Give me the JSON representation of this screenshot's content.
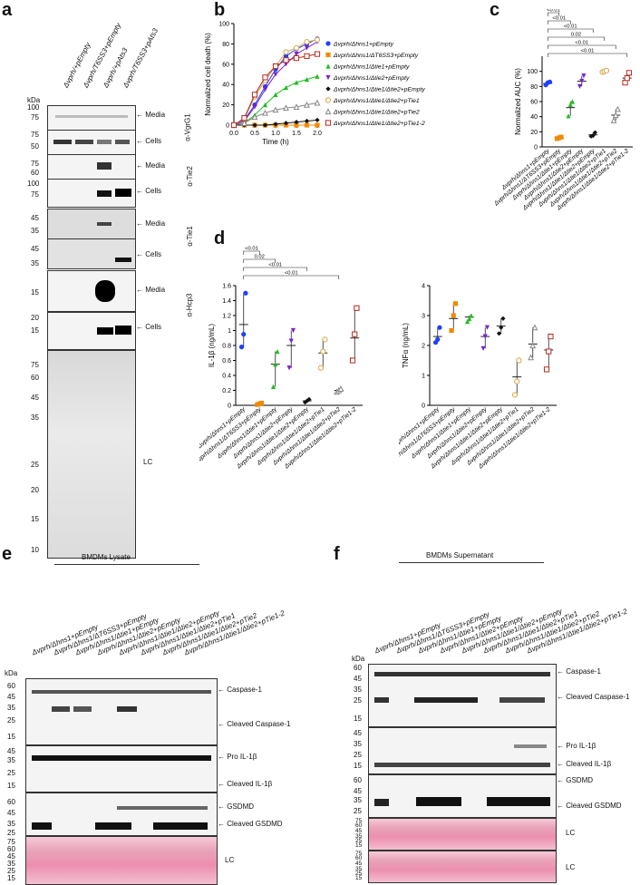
{
  "panels": {
    "a": {
      "label": "a",
      "lanes": [
        "Δvprh/+pEmpty",
        "Δvprh/T6SS3+pEmpty",
        "Δvprh/+pAts3",
        "Δvprh/T6SS3+pAts3"
      ],
      "kda_label": "kDa",
      "blots": [
        {
          "antibody": "α-VgrG1",
          "ticks": [
            "100",
            "75",
            "50"
          ],
          "rows": [
            {
              "label": "Media",
              "ticks": [
                "100",
                "75"
              ]
            },
            {
              "label": "Cells",
              "ticks": [
                "75",
                "50"
              ]
            }
          ]
        },
        {
          "antibody": "α-Tie2",
          "rows": [
            {
              "label": "Media",
              "ticks": [
                "75",
                "60"
              ]
            },
            {
              "label": "Cells",
              "ticks": [
                "100",
                "75"
              ]
            }
          ]
        },
        {
          "antibody": "α-Tie1",
          "rows": [
            {
              "label": "Media",
              "ticks": [
                "45",
                "35"
              ]
            },
            {
              "label": "Cells",
              "ticks": [
                "45",
                "35"
              ]
            }
          ]
        },
        {
          "antibody": "α-Hcp3",
          "rows": [
            {
              "label": "Media",
              "ticks": [
                "15"
              ]
            },
            {
              "label": "Cells",
              "ticks": [
                "20",
                "15"
              ]
            }
          ]
        }
      ],
      "lc": {
        "label": "LC",
        "ticks": [
          "75",
          "60",
          "45",
          "35",
          "25",
          "20",
          "15",
          "10"
        ]
      }
    },
    "b": {
      "label": "b"
    },
    "c": {
      "label": "c"
    },
    "d": {
      "label": "d"
    },
    "e": {
      "label": "e",
      "title": "BMDMs Lysate",
      "kda_label": "kDa",
      "bands": [
        "Caspase-1",
        "Cleaved Caspase-1",
        "Pro IL-1β",
        "Cleaved IL-1β",
        "GSDMD",
        "Cleaved GSDMD",
        "LC"
      ],
      "ticks1": [
        "60",
        "45",
        "35",
        "25",
        "15"
      ],
      "ticks2": [
        "45",
        "35",
        "25",
        "15"
      ],
      "ticks3": [
        "60",
        "45",
        "35",
        "25"
      ],
      "ticks4": [
        "75",
        "60",
        "45",
        "35",
        "25",
        "15"
      ]
    },
    "f": {
      "label": "f",
      "title": "BMDMs Supernatant",
      "kda_label": "kDa",
      "bands": [
        "Caspase-1",
        "Cleaved Caspase-1",
        "Pro IL-1β",
        "Cleaved IL-1β",
        "GSDMD",
        "Cleaved GSDMD",
        "LC",
        "LC"
      ],
      "ticks1": [
        "60",
        "45",
        "35",
        "25",
        "15"
      ],
      "ticks2": [
        "45",
        "35",
        "25",
        "15"
      ],
      "ticks3": [
        "60",
        "45",
        "35",
        "25"
      ],
      "ticks4": [
        "75",
        "60",
        "45",
        "35",
        "25",
        "15"
      ],
      "ticks5": [
        "75",
        "60",
        "45",
        "35",
        "25",
        "15"
      ]
    }
  },
  "strain_labels": [
    "Δvprh/Δhns1+pEmpty",
    "Δvprh/Δhns1/ΔT6SS3+pEmpty",
    "Δvprh/Δhns1/Δtie1+pEmpty",
    "Δvprh/Δhns1/Δtie2+pEmpty",
    "Δvprh/Δhns1/Δtie1/Δtie2+pEmpty",
    "Δvprh/Δhns1/Δtie1/Δtie2+pTie1",
    "Δvprh/Δhns1/Δtie1/Δtie2+pTie2",
    "Δvprh/Δhns1/Δtie1/Δtie2+pTie1-2"
  ],
  "chart_data": [
    {
      "type": "line",
      "panel": "b",
      "xlabel": "Time (h)",
      "ylabel": "Normalized cell death (%)",
      "xlim": [
        0,
        2.0
      ],
      "ylim": [
        0,
        100
      ],
      "xticks": [
        "0.0",
        "0.5",
        "1.0",
        "1.5",
        "2.0"
      ],
      "yticks": [
        "0",
        "20",
        "40",
        "60",
        "80",
        "100"
      ],
      "legend": "right",
      "x": [
        0,
        0.25,
        0.5,
        0.75,
        1.0,
        1.25,
        1.5,
        1.75,
        2.0
      ],
      "series": [
        {
          "name": "Δvprh/Δhns1+pEmpty",
          "color": "#1f3fff",
          "marker": "circle",
          "values": [
            0,
            5,
            20,
            38,
            55,
            68,
            75,
            80,
            85
          ]
        },
        {
          "name": "Δvprh/Δhns1/ΔT6SS3+pEmpty",
          "color": "#f08a00",
          "marker": "square",
          "values": [
            0,
            0,
            0,
            0,
            0,
            0,
            0,
            0,
            0
          ]
        },
        {
          "name": "Δvprh/Δhns1/Δtie1+pEmpty",
          "color": "#22bb22",
          "marker": "triangle",
          "values": [
            0,
            2,
            10,
            20,
            30,
            37,
            42,
            45,
            48
          ]
        },
        {
          "name": "Δvprh/Δhns1/Δtie2+pEmpty",
          "color": "#7a22cc",
          "marker": "triangle-down",
          "values": [
            0,
            4,
            18,
            35,
            50,
            60,
            70,
            76,
            82
          ]
        },
        {
          "name": "Δvprh/Δhns1/Δtie1/Δtie2+pEmpty",
          "color": "#111111",
          "marker": "diamond",
          "values": [
            0,
            0,
            0,
            0,
            1,
            2,
            3,
            4,
            5
          ]
        },
        {
          "name": "Δvprh/Δhns1/Δtie1/Δtie2+pTie1",
          "color": "#d9a64a",
          "marker": "circle-open",
          "values": [
            0,
            6,
            28,
            44,
            58,
            72,
            76,
            82,
            84
          ]
        },
        {
          "name": "Δvprh/Δhns1/Δtie1/Δtie2+pTie2",
          "color": "#888888",
          "marker": "triangle-open",
          "values": [
            0,
            2,
            8,
            12,
            15,
            17,
            18,
            20,
            22
          ]
        },
        {
          "name": "Δvprh/Δhns1/Δtie1/Δtie2+pTie1-2",
          "color": "#b52a1d",
          "marker": "square-open",
          "values": [
            0,
            7,
            30,
            47,
            58,
            64,
            66,
            68,
            70
          ]
        }
      ]
    },
    {
      "type": "scatter",
      "panel": "c",
      "ylabel": "Normalized AUC (%)",
      "ylim": [
        0,
        120
      ],
      "yticks": [
        "0",
        "20",
        "40",
        "60",
        "80",
        "100"
      ],
      "categories_ref": "strain_labels",
      "means": [
        84,
        12,
        52,
        87,
        16,
        100,
        42,
        91
      ],
      "points": [
        [
          82,
          85,
          86
        ],
        [
          11,
          12,
          13
        ],
        [
          41,
          56,
          60
        ],
        [
          80,
          87,
          94
        ],
        [
          14,
          15,
          19
        ],
        [
          99,
          100,
          101
        ],
        [
          35,
          42,
          50
        ],
        [
          85,
          91,
          98
        ]
      ],
      "colors": [
        "#1f3fff",
        "#f08a00",
        "#22bb22",
        "#7a22cc",
        "#111111",
        "#d9a64a",
        "#888888",
        "#b52a1d"
      ],
      "brackets": [
        {
          "from": 0,
          "to": 1,
          "label": "<0.01"
        },
        {
          "from": 0,
          "to": 2,
          "label": "<0.01"
        },
        {
          "from": 0,
          "to": 4,
          "label": "<0.01"
        },
        {
          "from": 0,
          "to": 5,
          "label": "0.02"
        },
        {
          "from": 0,
          "to": 6,
          "label": "<0.01"
        },
        {
          "from": 0,
          "to": 7,
          "label": "<0.01"
        }
      ]
    },
    {
      "type": "scatter",
      "panel": "d-left",
      "ylabel": "IL-1β (ng/mL)",
      "ylim": [
        0,
        1.6
      ],
      "yticks": [
        "0",
        "0.2",
        "0.4",
        "0.6",
        "0.8",
        "1",
        "1.2",
        "1.4",
        "1.6"
      ],
      "means": [
        1.08,
        0.02,
        0.55,
        0.8,
        0.06,
        0.7,
        0.2,
        0.9
      ],
      "points": [
        [
          0.78,
          0.95,
          1.5
        ],
        [
          0.01,
          0.02,
          0.03
        ],
        [
          0.25,
          0.55,
          0.72
        ],
        [
          0.5,
          0.86,
          1.0
        ],
        [
          0.04,
          0.06,
          0.08
        ],
        [
          0.5,
          0.72,
          0.88
        ],
        [
          0.18,
          0.2,
          0.22
        ],
        [
          0.6,
          0.95,
          1.3
        ]
      ],
      "colors": [
        "#1f3fff",
        "#f08a00",
        "#22bb22",
        "#7a22cc",
        "#111111",
        "#d9a64a",
        "#888888",
        "#b52a1d"
      ],
      "brackets": [
        {
          "from": 0,
          "to": 1,
          "label": "<0.01"
        },
        {
          "from": 0,
          "to": 2,
          "label": "0.02"
        },
        {
          "from": 0,
          "to": 4,
          "label": "<0.01"
        },
        {
          "from": 0,
          "to": 6,
          "label": "<0.01"
        }
      ]
    },
    {
      "type": "scatter",
      "panel": "d-right",
      "ylabel": "TNFα (ng/mL)",
      "ylim": [
        0,
        4
      ],
      "yticks": [
        "0",
        "1",
        "2",
        "3",
        "4"
      ],
      "means": [
        2.3,
        2.9,
        2.95,
        2.3,
        2.65,
        0.95,
        2.05,
        1.85
      ],
      "points": [
        [
          2.1,
          2.2,
          2.6
        ],
        [
          2.5,
          3.0,
          3.4
        ],
        [
          2.8,
          2.9,
          3.0
        ],
        [
          1.9,
          2.3,
          2.6
        ],
        [
          2.4,
          2.6,
          2.9
        ],
        [
          0.35,
          0.8,
          1.5
        ],
        [
          1.6,
          2.0,
          2.6
        ],
        [
          1.2,
          1.8,
          2.3
        ]
      ],
      "colors": [
        "#1f3fff",
        "#f08a00",
        "#22bb22",
        "#7a22cc",
        "#111111",
        "#d9a64a",
        "#888888",
        "#b52a1d"
      ]
    }
  ]
}
